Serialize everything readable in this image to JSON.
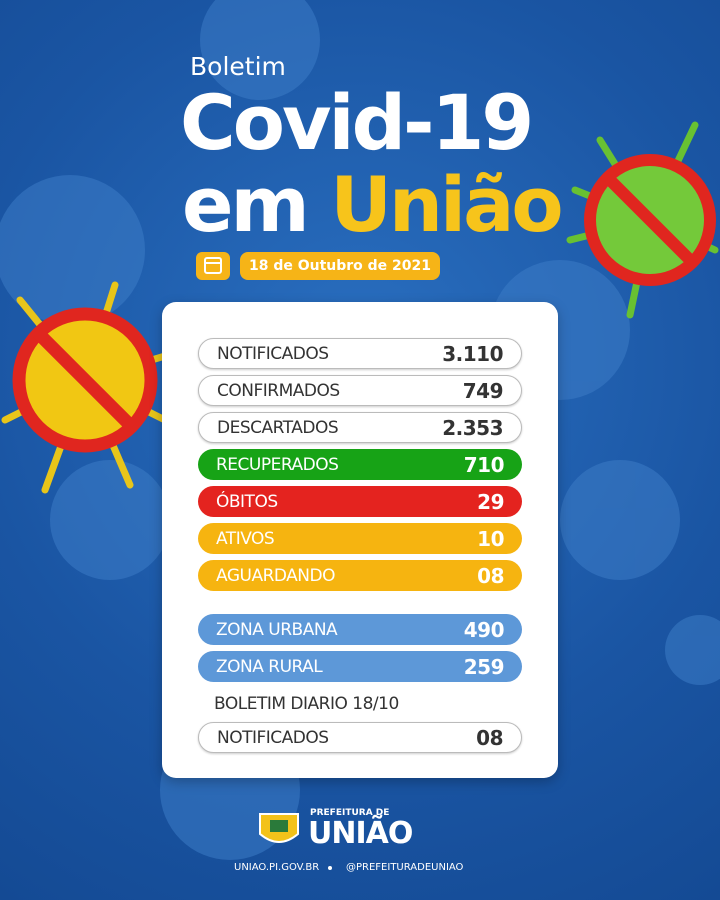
{
  "header": {
    "kicker": "Boletim",
    "title_line1": "Covid-19",
    "title_line2_prefix": "em",
    "title_line2_highlight": "União",
    "date": "18 de Outubro de 2021"
  },
  "table": {
    "rows": [
      {
        "label": "NOTIFICADOS",
        "value": "3.110"
      },
      {
        "label": "CONFIRMADOS",
        "value": "749"
      },
      {
        "label": "DESCARTADOS",
        "value": "2.353"
      },
      {
        "label": "RECUPERADOS",
        "value": "710"
      },
      {
        "label": "ÓBITOS",
        "value": "29"
      },
      {
        "label": "ATIVOS",
        "value": "10"
      },
      {
        "label": "AGUARDANDO",
        "value": "08"
      }
    ],
    "zones": [
      {
        "label": "ZONA URBANA",
        "value": "490"
      },
      {
        "label": "ZONA RURAL",
        "value": "259"
      }
    ],
    "daily_heading": "BOLETIM DIARIO 18/10",
    "daily": [
      {
        "label": "NOTIFICADOS",
        "value": "08"
      }
    ]
  },
  "footer": {
    "logo_top": "PREFEITURA DE",
    "logo_name": "UNIÃO",
    "site": "UNIAO.PI.GOV.BR",
    "social": "@PREFEITURADEUNIAO"
  }
}
